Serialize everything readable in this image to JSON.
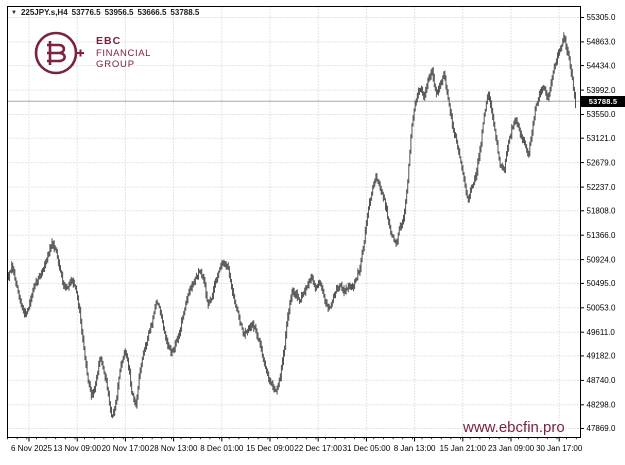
{
  "header": {
    "dropdown_icon": "▼",
    "symbol": "225JPY.s,H4",
    "open": "53776.5",
    "high": "53956.5",
    "low": "53666.5",
    "close": "53788.5"
  },
  "logo": {
    "plus": "+",
    "line1": "EBC",
    "line2": "FINANCIAL",
    "line3": "GROUP",
    "color": "#7a2240"
  },
  "watermark": "www.ebcfin.pro",
  "price_tag": "53788.5",
  "colors": {
    "brand": "#7a2240",
    "bars": "#4a4a4a",
    "grid": "#c9c9c9",
    "bid_line": "#a9a9a9",
    "frame": "#000000",
    "axis_text": "#000000",
    "tag_bg": "#000000",
    "tag_text": "#ffffff"
  },
  "chart_data": {
    "type": "ohlc-bar",
    "symbol": "225JPY.s",
    "timeframe": "H4",
    "title": "225JPY.s,H4 53776.5 53956.5 53666.5 53788.5",
    "current_price": 53788.5,
    "current_bar": {
      "open": 53776.5,
      "high": 53956.5,
      "low": 53666.5,
      "close": 53788.5
    },
    "ylim": [
      47706,
      55504
    ],
    "grid": "dashed",
    "legend_position": "none",
    "y_ticks": [
      55305.0,
      54863.0,
      54434.0,
      53992.0,
      53550.0,
      53121.0,
      52679.0,
      52237.0,
      51808.0,
      51366.0,
      50924.0,
      50495.0,
      50053.0,
      49611.0,
      49182.0,
      48740.0,
      48298.0,
      47869.0
    ],
    "x_ticks": [
      "6 Nov 2025",
      "13 Nov 09:00",
      "20 Nov 17:00",
      "28 Nov 13:00",
      "8 Dec 01:00",
      "15 Dec 09:00",
      "22 Dec 17:00",
      "31 Dec 05:00",
      "8 Jan 13:00",
      "15 Jan 21:00",
      "23 Jan 09:00",
      "30 Jan 17:00"
    ],
    "price_anchors": [
      [
        8,
        50600
      ],
      [
        12,
        50800
      ],
      [
        16,
        50500
      ],
      [
        20,
        50150
      ],
      [
        24,
        49950
      ],
      [
        28,
        50000
      ],
      [
        32,
        50300
      ],
      [
        36,
        50500
      ],
      [
        40,
        50650
      ],
      [
        44,
        50800
      ],
      [
        48,
        51000
      ],
      [
        52,
        51200
      ],
      [
        56,
        51100
      ],
      [
        60,
        50750
      ],
      [
        64,
        50450
      ],
      [
        68,
        50400
      ],
      [
        72,
        50600
      ],
      [
        76,
        50350
      ],
      [
        80,
        49950
      ],
      [
        84,
        49300
      ],
      [
        88,
        48700
      ],
      [
        92,
        48450
      ],
      [
        96,
        48700
      ],
      [
        100,
        49150
      ],
      [
        104,
        48900
      ],
      [
        108,
        48500
      ],
      [
        112,
        48050
      ],
      [
        116,
        48350
      ],
      [
        120,
        48900
      ],
      [
        124,
        49250
      ],
      [
        128,
        49100
      ],
      [
        132,
        48500
      ],
      [
        136,
        48300
      ],
      [
        140,
        48900
      ],
      [
        144,
        49250
      ],
      [
        148,
        49550
      ],
      [
        152,
        49800
      ],
      [
        156,
        50150
      ],
      [
        160,
        50050
      ],
      [
        164,
        49600
      ],
      [
        168,
        49350
      ],
      [
        172,
        49250
      ],
      [
        176,
        49400
      ],
      [
        180,
        49650
      ],
      [
        184,
        50000
      ],
      [
        188,
        50300
      ],
      [
        192,
        50450
      ],
      [
        196,
        50600
      ],
      [
        200,
        50700
      ],
      [
        204,
        50550
      ],
      [
        208,
        50100
      ],
      [
        212,
        50250
      ],
      [
        216,
        50550
      ],
      [
        220,
        50800
      ],
      [
        224,
        50850
      ],
      [
        228,
        50750
      ],
      [
        232,
        50400
      ],
      [
        236,
        50100
      ],
      [
        240,
        49800
      ],
      [
        244,
        49550
      ],
      [
        248,
        49650
      ],
      [
        252,
        49800
      ],
      [
        256,
        49600
      ],
      [
        260,
        49400
      ],
      [
        264,
        49100
      ],
      [
        268,
        48800
      ],
      [
        272,
        48650
      ],
      [
        276,
        48550
      ],
      [
        280,
        48750
      ],
      [
        284,
        49300
      ],
      [
        288,
        49900
      ],
      [
        292,
        50350
      ],
      [
        296,
        50300
      ],
      [
        300,
        50200
      ],
      [
        304,
        50350
      ],
      [
        308,
        50500
      ],
      [
        312,
        50600
      ],
      [
        316,
        50400
      ],
      [
        320,
        50550
      ],
      [
        324,
        50250
      ],
      [
        328,
        50050
      ],
      [
        332,
        50150
      ],
      [
        336,
        50400
      ],
      [
        340,
        50450
      ],
      [
        344,
        50350
      ],
      [
        348,
        50450
      ],
      [
        352,
        50400
      ],
      [
        356,
        50550
      ],
      [
        360,
        50800
      ],
      [
        364,
        51250
      ],
      [
        368,
        51800
      ],
      [
        372,
        52200
      ],
      [
        376,
        52400
      ],
      [
        380,
        52250
      ],
      [
        384,
        52050
      ],
      [
        388,
        51650
      ],
      [
        392,
        51350
      ],
      [
        396,
        51200
      ],
      [
        400,
        51500
      ],
      [
        404,
        51700
      ],
      [
        408,
        52400
      ],
      [
        412,
        53400
      ],
      [
        416,
        53800
      ],
      [
        420,
        54050
      ],
      [
        424,
        53850
      ],
      [
        428,
        54150
      ],
      [
        432,
        54350
      ],
      [
        436,
        53900
      ],
      [
        440,
        54100
      ],
      [
        444,
        54300
      ],
      [
        448,
        53850
      ],
      [
        452,
        53400
      ],
      [
        456,
        53100
      ],
      [
        460,
        52750
      ],
      [
        464,
        52350
      ],
      [
        468,
        52000
      ],
      [
        472,
        52250
      ],
      [
        476,
        52450
      ],
      [
        480,
        52900
      ],
      [
        484,
        53500
      ],
      [
        488,
        53950
      ],
      [
        492,
        53600
      ],
      [
        496,
        53100
      ],
      [
        500,
        52650
      ],
      [
        504,
        52550
      ],
      [
        508,
        53000
      ],
      [
        512,
        53300
      ],
      [
        516,
        53450
      ],
      [
        520,
        53250
      ],
      [
        524,
        53050
      ],
      [
        528,
        52800
      ],
      [
        532,
        53250
      ],
      [
        536,
        53700
      ],
      [
        540,
        53950
      ],
      [
        544,
        54050
      ],
      [
        548,
        53850
      ],
      [
        552,
        54200
      ],
      [
        556,
        54500
      ],
      [
        560,
        54750
      ],
      [
        564,
        54950
      ],
      [
        568,
        54650
      ],
      [
        572,
        54250
      ],
      [
        575,
        53788.5
      ]
    ]
  }
}
